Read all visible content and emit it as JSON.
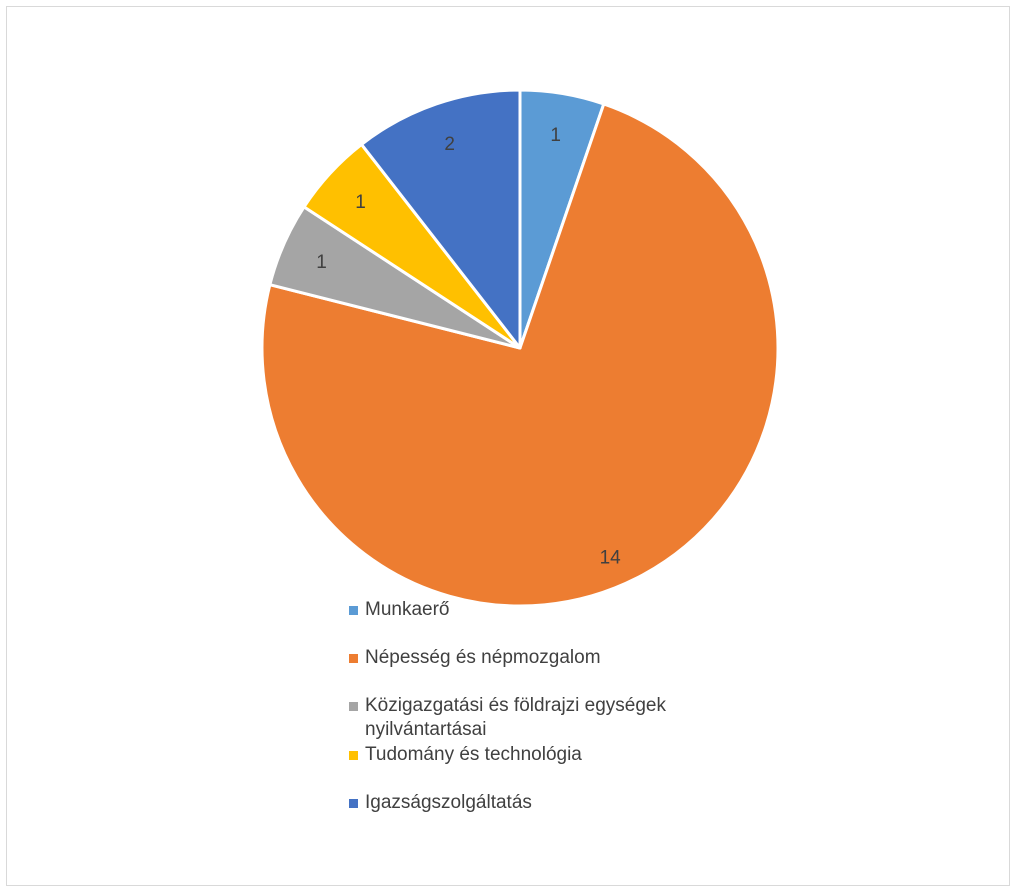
{
  "chart_data": {
    "type": "pie",
    "title": "",
    "categories": [
      "Munkaerő",
      "Népesség és népmozgalom",
      "Közigazgatási és földrajzi egységek nyilvántartásai",
      "Tudomány és technológia",
      "Igazságszolgáltatás"
    ],
    "values": [
      1,
      14,
      1,
      1,
      2
    ],
    "data_labels": [
      "1",
      "14",
      "1",
      "1",
      "2"
    ],
    "colors": [
      "#5B9BD5",
      "#ED7D31",
      "#A5A5A5",
      "#FFC000",
      "#4472C4"
    ],
    "start_angle": "12 o'clock",
    "direction": "clockwise",
    "legend_position": "bottom"
  },
  "legend": {
    "items": [
      {
        "label": "Munkaerő",
        "color": "#5B9BD5"
      },
      {
        "label": "Népesség és népmozgalom",
        "color": "#ED7D31"
      },
      {
        "label": "Közigazgatási és földrajzi egységek nyilvántartásai",
        "color": "#A5A5A5"
      },
      {
        "label": "Tudomány és technológia",
        "color": "#FFC000"
      },
      {
        "label": "Igazságszolgáltatás",
        "color": "#4472C4"
      }
    ]
  }
}
